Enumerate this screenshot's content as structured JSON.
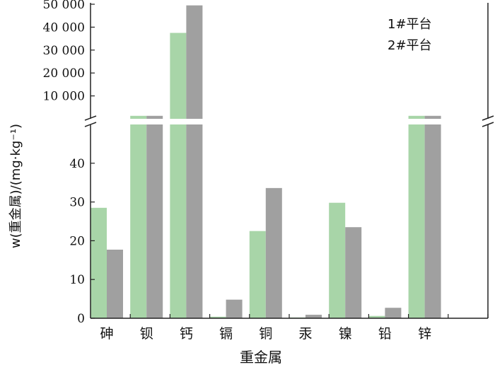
{
  "chart_data": {
    "type": "bar",
    "xlabel": "重金属",
    "ylabel": "w(重金属)/(mg·kg⁻¹)",
    "categories": [
      "砷",
      "钡",
      "钙",
      "镉",
      "铜",
      "汞",
      "镍",
      "铅",
      "锌"
    ],
    "series": [
      {
        "name": "1#平台",
        "color": "#a8d5a8",
        "values": [
          28.5,
          1300,
          37500,
          0.4,
          22.5,
          0.2,
          29.8,
          0.6,
          1300
        ]
      },
      {
        "name": "2#平台",
        "color": "#a0a0a0",
        "values": [
          17.7,
          1300,
          49500,
          4.8,
          33.6,
          0.9,
          23.5,
          2.7,
          1300
        ]
      }
    ],
    "axis_break": {
      "lower_range": [
        0,
        50
      ],
      "upper_range": [
        0,
        50000
      ]
    },
    "lower_ticks": [
      "0",
      "10",
      "20",
      "30",
      "40"
    ],
    "upper_ticks": [
      "10 000",
      "20 000",
      "30 000",
      "40 000",
      "50 000"
    ],
    "legend_labels": [
      "1#平台",
      "2#平台"
    ]
  }
}
